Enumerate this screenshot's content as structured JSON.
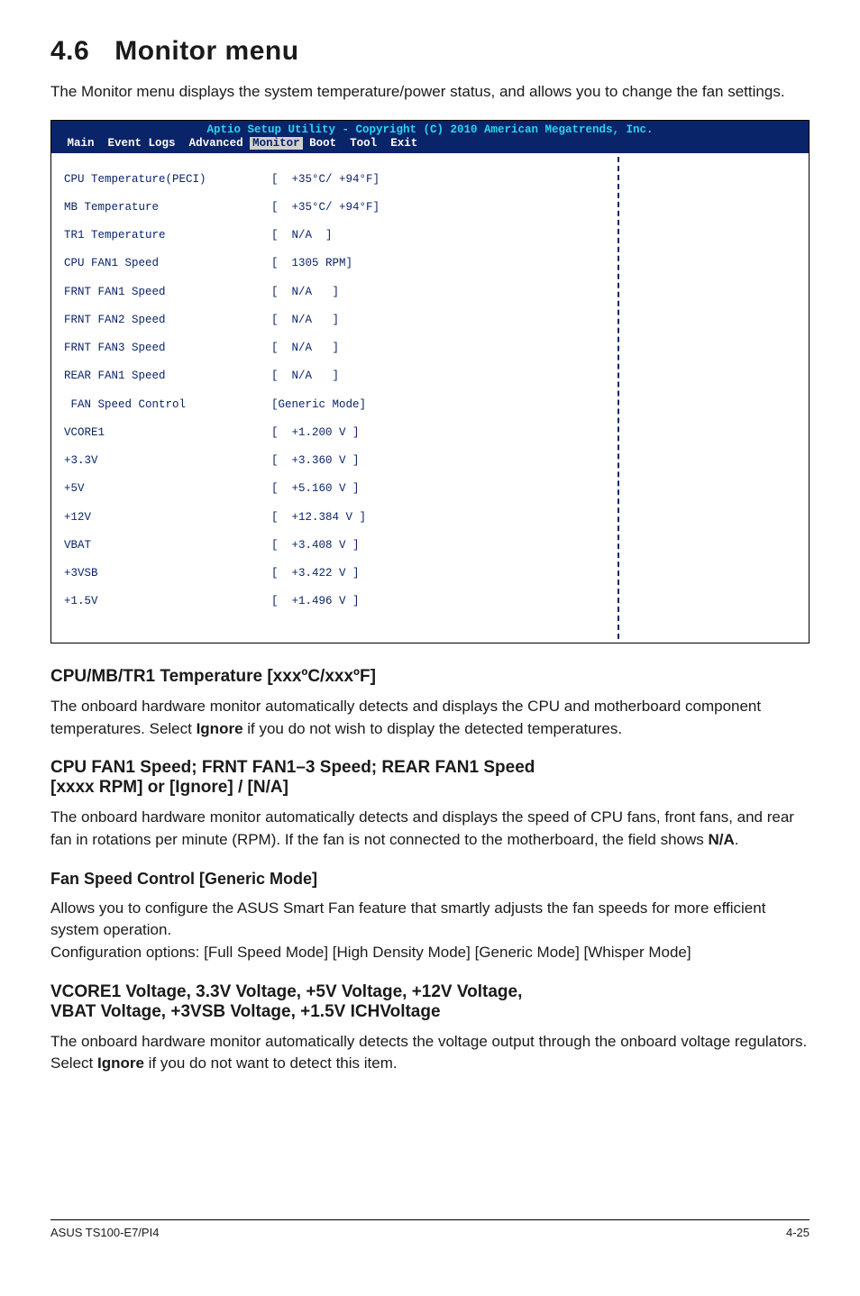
{
  "section": {
    "number": "4.6",
    "title": "Monitor menu"
  },
  "intro": "The Monitor menu displays the system temperature/power status, and allows you to change the fan settings.",
  "bios": {
    "bg_color": "#0a246a",
    "text_color": "#ffffff",
    "title_color": "#2ad6f0",
    "body_bg": "#ffffff",
    "body_text": "#0a246a",
    "title": "Aptio Setup Utility - Copyright (C) 2010 American Megatrends, Inc.",
    "menu": {
      "items": [
        "Main",
        "Event Logs",
        "Advanced",
        "Monitor",
        "Boot",
        "Tool",
        "Exit"
      ],
      "selected": "Monitor"
    },
    "rows": [
      {
        "label": "CPU Temperature(PECI)",
        "value": "[  +35°C/ +94°F]"
      },
      {
        "label": "MB Temperature",
        "value": "[  +35°C/ +94°F]"
      },
      {
        "label": "TR1 Temperature",
        "value": "[  N/A  ]"
      },
      {
        "label": "CPU FAN1 Speed",
        "value": "[  1305 RPM]"
      },
      {
        "label": "FRNT FAN1 Speed",
        "value": "[  N/A   ]"
      },
      {
        "label": "FRNT FAN2 Speed",
        "value": "[  N/A   ]"
      },
      {
        "label": "FRNT FAN3 Speed",
        "value": "[  N/A   ]"
      },
      {
        "label": "REAR FAN1 Speed",
        "value": "[  N/A   ]"
      },
      {
        "label": " FAN Speed Control",
        "value": "[Generic Mode]"
      },
      {
        "label": "VCORE1",
        "value": "[  +1.200 V ]"
      },
      {
        "label": "+3.3V",
        "value": "[  +3.360 V ]"
      },
      {
        "label": "+5V",
        "value": "[  +5.160 V ]"
      },
      {
        "label": "+12V",
        "value": "[  +12.384 V ]"
      },
      {
        "label": "VBAT",
        "value": "[  +3.408 V ]"
      },
      {
        "label": "+3VSB",
        "value": "[  +3.422 V ]"
      },
      {
        "label": "+1.5V",
        "value": "[  +1.496 V ]"
      }
    ]
  },
  "subsections": {
    "s1": {
      "title": "CPU/MB/TR1 Temperature [xxxºC/xxxºF]",
      "body_a": "The onboard hardware monitor automatically detects and displays the CPU and motherboard component temperatures. Select ",
      "body_bold": "Ignore",
      "body_b": " if you do not wish to display the detected temperatures."
    },
    "s2": {
      "title_l1": "CPU FAN1 Speed; FRNT FAN1–3 Speed; REAR FAN1 Speed",
      "title_l2": "[xxxx RPM] or [Ignore] / [N/A]",
      "body_a": "The onboard hardware monitor automatically detects and displays the speed of CPU fans, front fans, and rear fan in rotations per minute (RPM). If the fan is not connected to the motherboard, the field shows ",
      "body_bold": "N/A",
      "body_b": "."
    },
    "s3": {
      "title": "Fan Speed Control [Generic Mode]",
      "body": "Allows you to configure the ASUS Smart Fan feature that smartly adjusts the fan speeds for more efficient system operation.\nConfiguration options: [Full Speed Mode] [High Density Mode] [Generic Mode] [Whisper Mode]"
    },
    "s4": {
      "title_l1": "VCORE1 Voltage, 3.3V Voltage, +5V Voltage, +12V Voltage,",
      "title_l2": "VBAT Voltage, +3VSB Voltage, +1.5V ICHVoltage",
      "body_a": "The onboard hardware monitor automatically detects the voltage output through the onboard voltage regulators. Select ",
      "body_bold": "Ignore",
      "body_b": " if you do not want to detect this item."
    }
  },
  "footer": {
    "left": "ASUS TS100-E7/PI4",
    "right": "4-25"
  }
}
